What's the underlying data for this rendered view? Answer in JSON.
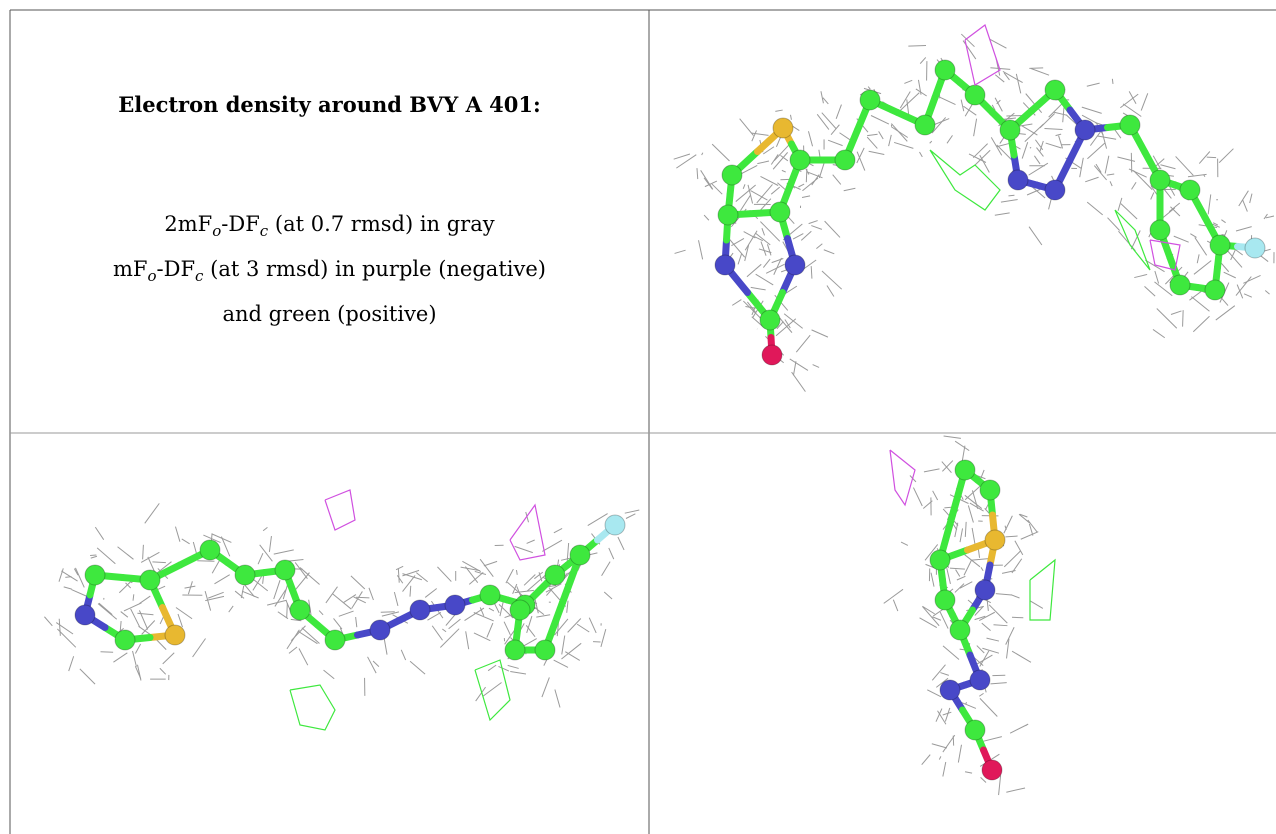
{
  "title": "Electron density around BVY A 401:",
  "legend": {
    "lines": [
      [
        "2mF",
        "o",
        "-DF",
        "c",
        " (at 0.7 rmsd) in gray"
      ],
      [
        "mF",
        "o",
        "-DF",
        "c",
        " (at 3 rmsd) in purple (negative)"
      ],
      [
        "and green (positive)"
      ]
    ]
  }
}
